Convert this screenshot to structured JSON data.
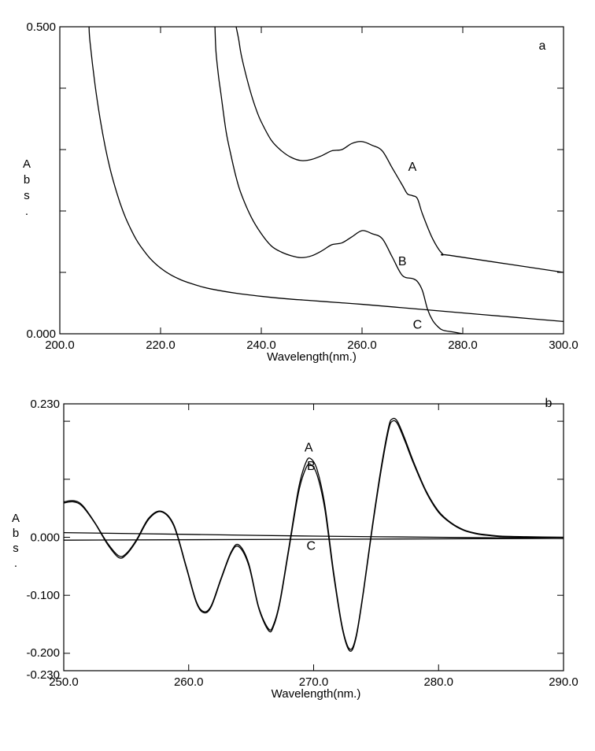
{
  "chart_data": [
    {
      "type": "line",
      "panel_label": "a",
      "xlabel": "Wavelength(nm.)",
      "ylabel": [
        "A",
        "b",
        "s",
        "."
      ],
      "xlim": [
        200.0,
        300.0
      ],
      "ylim": [
        0.0,
        0.5
      ],
      "x_ticks": [
        "200.0",
        "220.0",
        "240.0",
        "260.0",
        "280.0",
        "300.0"
      ],
      "y_tick_labels": [
        "0.000",
        "0.500"
      ],
      "y_minor_ticks": [
        0.1,
        0.2,
        0.3,
        0.4
      ],
      "series": [
        {
          "name": "A",
          "x": [
            235.0,
            235.5,
            236.0,
            237.0,
            238.0,
            239.0,
            240.0,
            242.0,
            244.0,
            246.0,
            248.0,
            250.0,
            252.0,
            254.0,
            256.0,
            258.0,
            260.0,
            262.0,
            264.0,
            266.0,
            268.0,
            269.0,
            270.0,
            271.0,
            272.0,
            274.0,
            276.0,
            278.0,
            300.0
          ],
          "y": [
            0.5,
            0.48,
            0.455,
            0.42,
            0.39,
            0.365,
            0.345,
            0.315,
            0.298,
            0.287,
            0.282,
            0.284,
            0.29,
            0.298,
            0.3,
            0.31,
            0.313,
            0.307,
            0.298,
            0.27,
            0.242,
            0.228,
            0.225,
            0.22,
            0.195,
            0.155,
            0.13,
            0.127,
            0.1
          ]
        },
        {
          "name": "B",
          "x": [
            230.8,
            231.0,
            231.5,
            232.0,
            233.0,
            234.0,
            235.0,
            236.0,
            238.0,
            240.0,
            242.0,
            244.0,
            246.0,
            248.0,
            250.0,
            252.0,
            254.0,
            256.0,
            258.0,
            260.0,
            262.0,
            264.0,
            266.0,
            268.0,
            270.0,
            271.0,
            272.0,
            273.0,
            274.0,
            275.0,
            276.0,
            278.0,
            280.0
          ],
          "y": [
            0.5,
            0.46,
            0.42,
            0.39,
            0.33,
            0.29,
            0.255,
            0.228,
            0.19,
            0.163,
            0.143,
            0.133,
            0.127,
            0.124,
            0.127,
            0.135,
            0.145,
            0.148,
            0.158,
            0.168,
            0.163,
            0.155,
            0.125,
            0.095,
            0.09,
            0.085,
            0.07,
            0.04,
            0.022,
            0.012,
            0.006,
            0.003,
            0.0
          ]
        },
        {
          "name": "C",
          "x": [
            205.8,
            206.0,
            207.0,
            208.0,
            209.0,
            210.0,
            211.0,
            212.0,
            213.0,
            214.0,
            215.0,
            216.0,
            218.0,
            220.0,
            222.0,
            224.0,
            226.0,
            228.0,
            230.0,
            235.0,
            240.0,
            245.0,
            250.0,
            255.0,
            260.0,
            270.0,
            280.0,
            290.0,
            300.0
          ],
          "y": [
            0.5,
            0.475,
            0.405,
            0.35,
            0.305,
            0.268,
            0.238,
            0.212,
            0.19,
            0.172,
            0.156,
            0.143,
            0.122,
            0.107,
            0.096,
            0.088,
            0.082,
            0.077,
            0.073,
            0.066,
            0.061,
            0.057,
            0.054,
            0.051,
            0.048,
            0.041,
            0.034,
            0.027,
            0.02
          ]
        }
      ]
    },
    {
      "type": "line",
      "panel_label": "b",
      "xlabel": "Wavelength(nm.)",
      "ylabel": [
        "A",
        "b",
        "s",
        "."
      ],
      "xlim": [
        250.0,
        290.0
      ],
      "ylim": [
        -0.23,
        0.23
      ],
      "x_ticks": [
        "250.0",
        "260.0",
        "270.0",
        "280.0",
        "290.0"
      ],
      "y_ticks": [
        {
          "value": 0.23,
          "label": "0.230"
        },
        {
          "value": 0.0,
          "label": "0.000"
        },
        {
          "value": -0.1,
          "label": "-0.100"
        },
        {
          "value": -0.2,
          "label": "-0.200"
        },
        {
          "value": -0.23,
          "label": "-0.230"
        }
      ],
      "y_minor_ticks": [
        0.1,
        0.2
      ],
      "series": [
        {
          "name": "A",
          "x": [
            250.0,
            250.8,
            251.5,
            252.5,
            253.5,
            254.4,
            255.0,
            255.8,
            256.8,
            257.8,
            258.8,
            259.8,
            260.6,
            261.2,
            261.8,
            262.6,
            263.4,
            264.0,
            264.8,
            265.6,
            266.4,
            266.8,
            267.3,
            268.0,
            268.8,
            269.4,
            269.8,
            270.3,
            270.9,
            271.6,
            272.3,
            272.9,
            273.4,
            274.0,
            274.7,
            275.4,
            276.0,
            276.3,
            276.7,
            277.3,
            278.0,
            279.0,
            280.0,
            281.0,
            282.0,
            283.0,
            284.0,
            285.0,
            287.0,
            290.0
          ],
          "y": [
            0.061,
            0.063,
            0.055,
            0.025,
            -0.01,
            -0.032,
            -0.028,
            -0.005,
            0.033,
            0.045,
            0.022,
            -0.05,
            -0.11,
            -0.128,
            -0.118,
            -0.07,
            -0.025,
            -0.013,
            -0.045,
            -0.12,
            -0.158,
            -0.15,
            -0.11,
            -0.02,
            0.085,
            0.13,
            0.135,
            0.115,
            0.055,
            -0.06,
            -0.155,
            -0.193,
            -0.17,
            -0.09,
            0.02,
            0.12,
            0.19,
            0.204,
            0.2,
            0.17,
            0.13,
            0.08,
            0.045,
            0.025,
            0.013,
            0.007,
            0.004,
            0.002,
            0.001,
            0.0
          ]
        },
        {
          "name": "B",
          "x": [
            250.0,
            250.8,
            251.5,
            252.5,
            253.5,
            254.4,
            255.0,
            255.8,
            256.8,
            257.8,
            258.8,
            259.8,
            260.6,
            261.2,
            261.8,
            262.6,
            263.4,
            264.0,
            264.8,
            265.6,
            266.4,
            266.8,
            267.3,
            268.0,
            268.8,
            269.4,
            269.8,
            270.3,
            270.9,
            271.6,
            272.3,
            272.9,
            273.4,
            274.0,
            274.7,
            275.4,
            276.0,
            276.3,
            276.7,
            277.3,
            278.0,
            279.0,
            280.0,
            281.0,
            282.0,
            283.0,
            284.0,
            285.0,
            287.0,
            290.0
          ],
          "y": [
            0.059,
            0.061,
            0.053,
            0.024,
            -0.012,
            -0.035,
            -0.03,
            -0.007,
            0.031,
            0.044,
            0.02,
            -0.052,
            -0.112,
            -0.13,
            -0.12,
            -0.072,
            -0.027,
            -0.016,
            -0.048,
            -0.122,
            -0.161,
            -0.153,
            -0.113,
            -0.024,
            0.078,
            0.12,
            0.125,
            0.106,
            0.048,
            -0.065,
            -0.158,
            -0.196,
            -0.173,
            -0.093,
            0.016,
            0.115,
            0.185,
            0.2,
            0.196,
            0.166,
            0.127,
            0.078,
            0.043,
            0.024,
            0.012,
            0.006,
            0.003,
            0.001,
            0.0,
            0.0
          ]
        },
        {
          "name": "C",
          "x": [
            250.0,
            260.0,
            270.0,
            280.0,
            290.0
          ],
          "y": [
            0.008,
            0.005,
            0.002,
            0.0,
            -0.002
          ]
        }
      ],
      "extra_line": {
        "x": [
          250.0,
          290.0
        ],
        "y": [
          -0.005,
          -0.002
        ]
      }
    }
  ]
}
